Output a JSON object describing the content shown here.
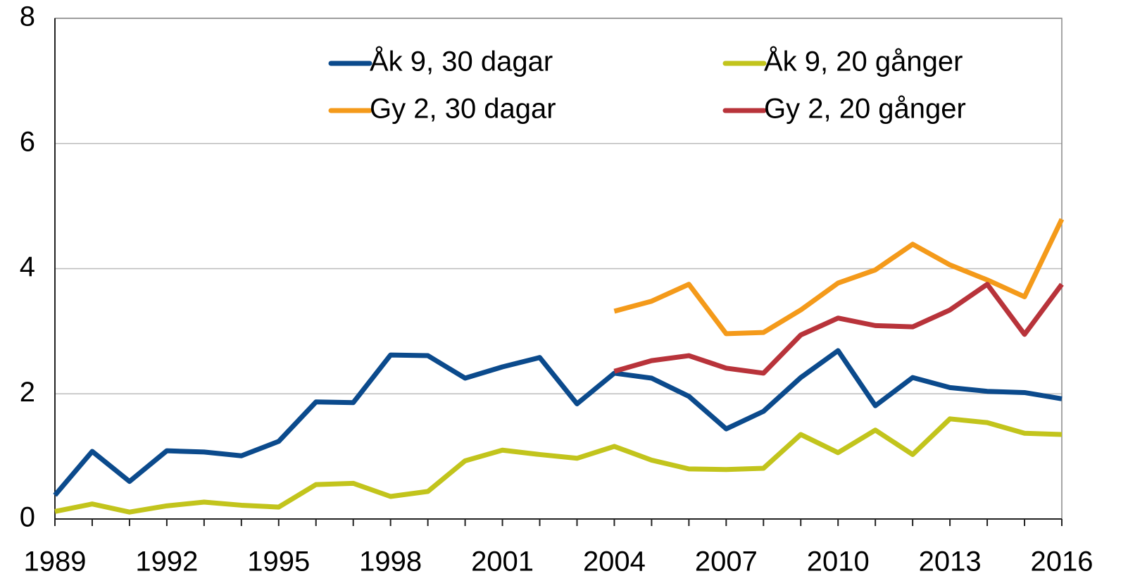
{
  "chart_data": {
    "type": "line",
    "x": [
      1989,
      1990,
      1991,
      1992,
      1993,
      1994,
      1995,
      1996,
      1997,
      1998,
      1999,
      2000,
      2001,
      2002,
      2003,
      2004,
      2005,
      2006,
      2007,
      2008,
      2009,
      2010,
      2011,
      2012,
      2013,
      2014,
      2015,
      2016
    ],
    "xlim": [
      1989,
      2016
    ],
    "xticks": [
      1989,
      1992,
      1995,
      1998,
      2001,
      2004,
      2007,
      2010,
      2013,
      2016
    ],
    "ylim": [
      0,
      8
    ],
    "yticks": [
      0,
      2,
      4,
      6,
      8
    ],
    "grid": true,
    "series": [
      {
        "name": "Åk 9, 30 dagar",
        "color": "#0b4a8c",
        "values": [
          0.38,
          1.08,
          0.6,
          1.09,
          1.07,
          1.01,
          1.24,
          1.87,
          1.86,
          2.62,
          2.61,
          2.25,
          2.43,
          2.58,
          1.84,
          2.33,
          2.25,
          1.96,
          1.44,
          1.72,
          2.26,
          2.69,
          1.81,
          2.26,
          2.1,
          2.04,
          2.02,
          1.92
        ]
      },
      {
        "name": "Åk 9, 20 gånger",
        "color": "#c2c41c",
        "values": [
          0.12,
          0.24,
          0.11,
          0.21,
          0.27,
          0.22,
          0.19,
          0.55,
          0.57,
          0.36,
          0.44,
          0.93,
          1.1,
          1.03,
          0.97,
          1.16,
          0.94,
          0.8,
          0.79,
          0.81,
          1.35,
          1.06,
          1.42,
          1.03,
          1.6,
          1.54,
          1.37,
          1.35
        ]
      },
      {
        "name": "Gy 2, 30 dagar",
        "color": "#f49a1a",
        "values": [
          null,
          null,
          null,
          null,
          null,
          null,
          null,
          null,
          null,
          null,
          null,
          null,
          null,
          null,
          null,
          3.32,
          3.48,
          3.75,
          2.96,
          2.98,
          3.34,
          3.77,
          3.98,
          4.39,
          4.06,
          3.82,
          3.55,
          4.79
        ]
      },
      {
        "name": "Gy 2, 20 gånger",
        "color": "#b8333a",
        "values": [
          null,
          null,
          null,
          null,
          null,
          null,
          null,
          null,
          null,
          null,
          null,
          null,
          null,
          null,
          null,
          2.36,
          2.53,
          2.61,
          2.41,
          2.33,
          2.94,
          3.21,
          3.09,
          3.07,
          3.34,
          3.75,
          2.95,
          3.75
        ]
      }
    ]
  }
}
